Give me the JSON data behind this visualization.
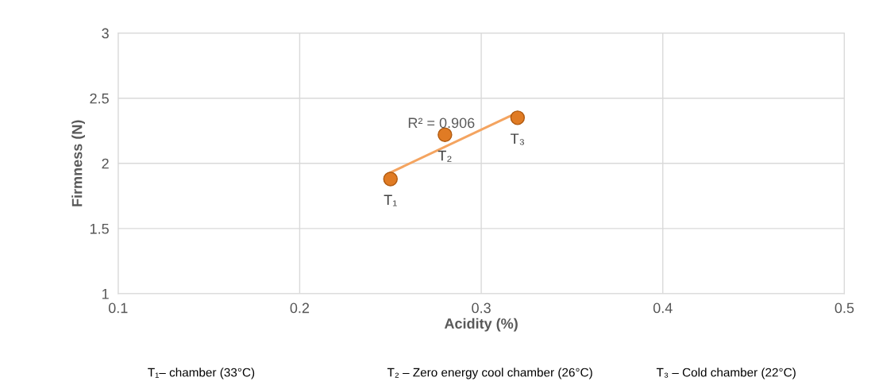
{
  "chart_data": {
    "type": "scatter",
    "xlabel": "Acidity (%)",
    "ylabel": "Firmness (N)",
    "xlim": [
      0.1,
      0.5
    ],
    "xticks": [
      0.1,
      0.2,
      0.3,
      0.4,
      0.5
    ],
    "ylim": [
      1,
      3
    ],
    "yticks": [
      1,
      1.5,
      2,
      2.5,
      3
    ],
    "grid": true,
    "legend": false,
    "series": [
      {
        "marker": "circle",
        "color": "#e07b24",
        "x": [
          0.25,
          0.28,
          0.32
        ],
        "values": [
          1.88,
          2.22,
          2.35
        ]
      },
      {
        "type": "line",
        "color": "#f4a460",
        "line_style": "solid",
        "x": [
          0.25,
          0.32
        ],
        "values": [
          1.93,
          2.39
        ]
      }
    ],
    "annotations": [
      "R² = 0.906",
      {
        "text": "T₁",
        "x": 0.25,
        "y": 1.88
      },
      {
        "text": "T₂",
        "x": 0.28,
        "y": 2.22
      },
      {
        "text": "T₃",
        "x": 0.32,
        "y": 2.35
      },
      "T₁– chamber (33°C)",
      "T₂ – Zero energy cool chamber (26°C)",
      "T₃ – Cold chamber (22°C)"
    ]
  }
}
